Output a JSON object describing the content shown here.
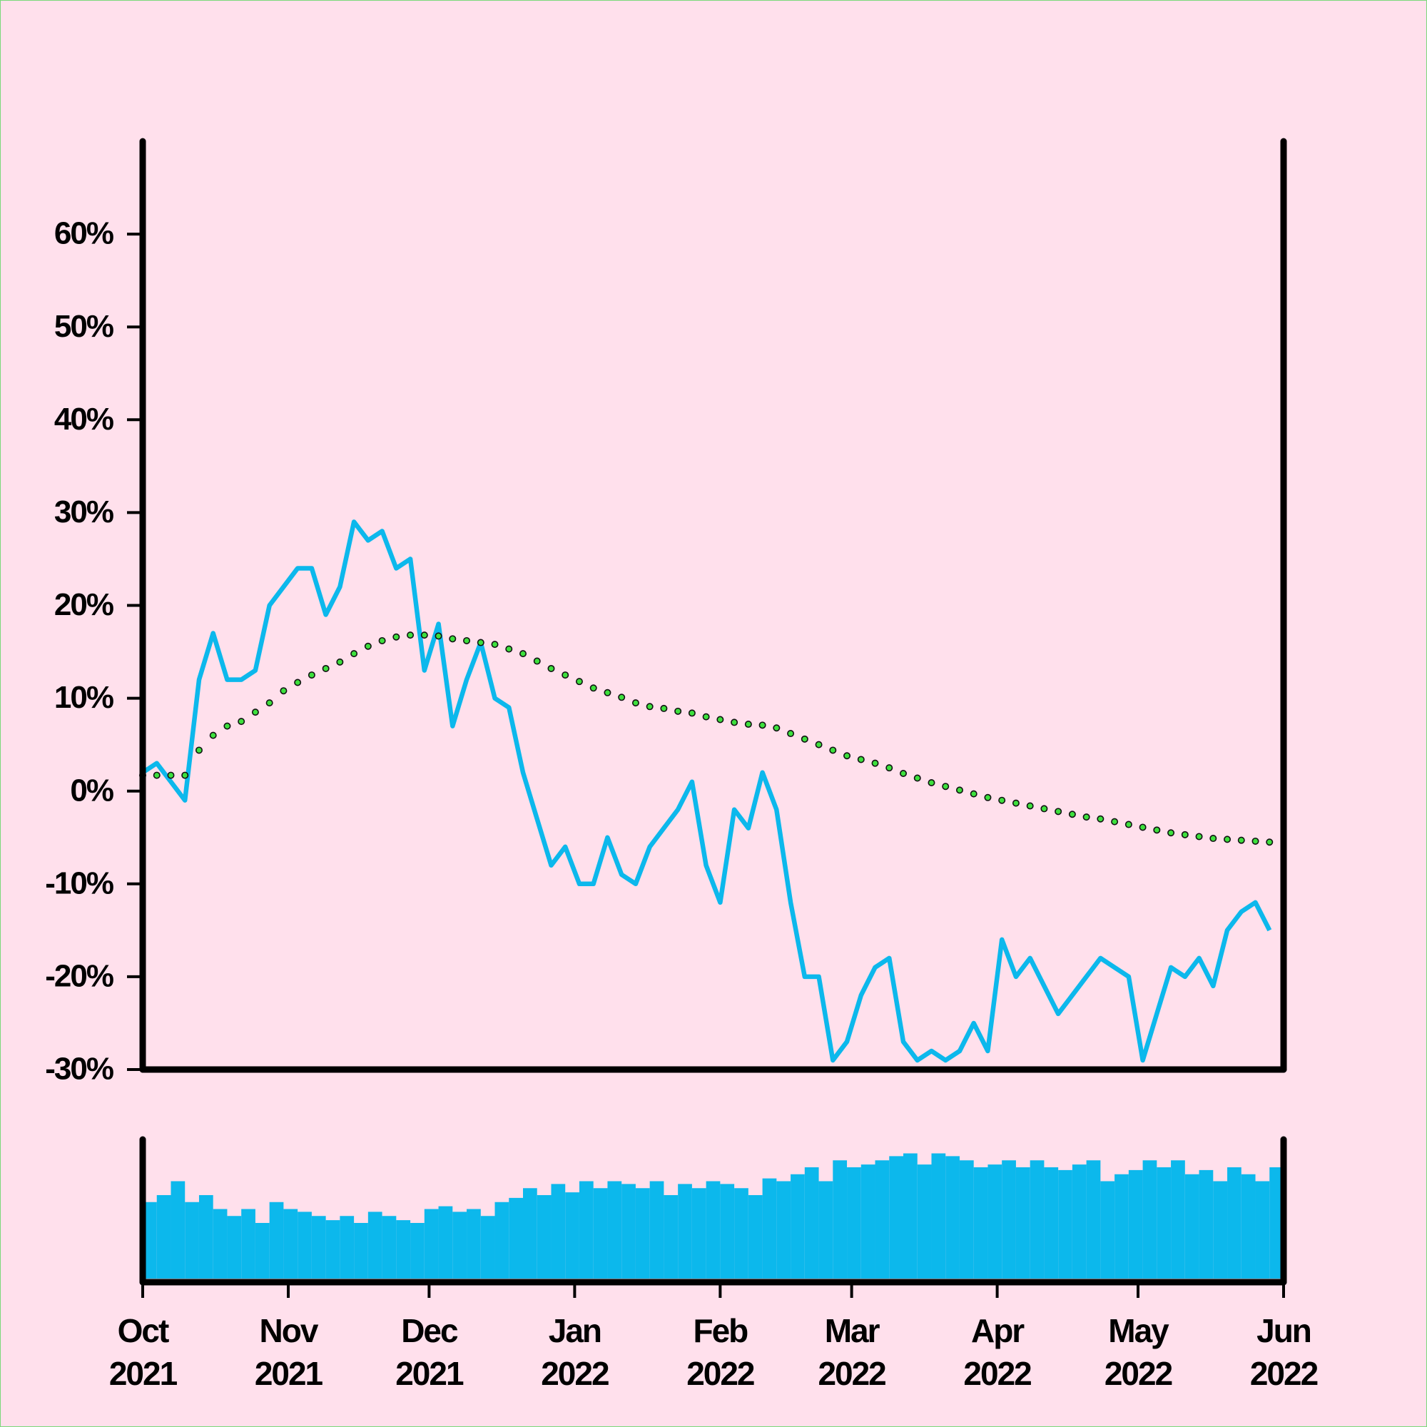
{
  "chart_data": [
    {
      "type": "line",
      "x": [
        "2021-10-01",
        "2021-10-04",
        "2021-10-07",
        "2021-10-10",
        "2021-10-13",
        "2021-10-16",
        "2021-10-19",
        "2021-10-22",
        "2021-10-25",
        "2021-10-28",
        "2021-10-31",
        "2021-11-03",
        "2021-11-06",
        "2021-11-09",
        "2021-11-12",
        "2021-11-15",
        "2021-11-18",
        "2021-11-21",
        "2021-11-24",
        "2021-11-27",
        "2021-11-30",
        "2021-12-03",
        "2021-12-06",
        "2021-12-09",
        "2021-12-12",
        "2021-12-15",
        "2021-12-18",
        "2021-12-21",
        "2021-12-24",
        "2021-12-27",
        "2021-12-30",
        "2022-01-02",
        "2022-01-05",
        "2022-01-08",
        "2022-01-11",
        "2022-01-14",
        "2022-01-17",
        "2022-01-20",
        "2022-01-23",
        "2022-01-26",
        "2022-01-29",
        "2022-02-01",
        "2022-02-04",
        "2022-02-07",
        "2022-02-10",
        "2022-02-13",
        "2022-02-16",
        "2022-02-19",
        "2022-02-22",
        "2022-02-25",
        "2022-02-28",
        "2022-03-03",
        "2022-03-06",
        "2022-03-09",
        "2022-03-12",
        "2022-03-15",
        "2022-03-18",
        "2022-03-21",
        "2022-03-24",
        "2022-03-27",
        "2022-03-30",
        "2022-04-02",
        "2022-04-05",
        "2022-04-08",
        "2022-04-11",
        "2022-04-14",
        "2022-04-17",
        "2022-04-20",
        "2022-04-23",
        "2022-04-26",
        "2022-04-29",
        "2022-05-02",
        "2022-05-05",
        "2022-05-08",
        "2022-05-11",
        "2022-05-14",
        "2022-05-17",
        "2022-05-20",
        "2022-05-23",
        "2022-05-26",
        "2022-05-29"
      ],
      "xlim": [
        "2021-10-01",
        "2022-06-01"
      ],
      "ylim": [
        -30,
        70
      ],
      "yticks": [
        {
          "value": -30,
          "label": "-30%"
        },
        {
          "value": -20,
          "label": "-20%"
        },
        {
          "value": -10,
          "label": "-10%"
        },
        {
          "value": 0,
          "label": "0%"
        },
        {
          "value": 10,
          "label": "10%"
        },
        {
          "value": 20,
          "label": "20%"
        },
        {
          "value": 30,
          "label": "30%"
        },
        {
          "value": 40,
          "label": "40%"
        },
        {
          "value": 50,
          "label": "50%"
        },
        {
          "value": 60,
          "label": "60%"
        }
      ],
      "series": [
        {
          "color": "#0cb8ec",
          "style": "line",
          "values": [
            2,
            3,
            1,
            -1,
            12,
            17,
            12,
            12,
            13,
            20,
            22,
            24,
            24,
            19,
            22,
            29,
            27,
            28,
            24,
            25,
            13,
            18,
            7,
            12,
            16,
            10,
            9,
            2,
            -3,
            -8,
            -6,
            -10,
            -10,
            -5,
            -9,
            -10,
            -6,
            -4,
            -2,
            1,
            -8,
            -12,
            -2,
            -4,
            2,
            -2,
            -12,
            -20,
            -20,
            -29,
            -27,
            -22,
            -19,
            -18,
            -27,
            -29,
            -28,
            -29,
            -28,
            -25,
            -28,
            -16,
            -20,
            -18,
            -21,
            -24,
            -22,
            -20,
            -18,
            -19,
            -20,
            -29,
            -24,
            -19,
            -20,
            -18,
            -21,
            -15,
            -13,
            -12,
            -15
          ]
        },
        {
          "color": "#3de03d",
          "style": "dots",
          "values": [
            1.7,
            1.7,
            1.7,
            1.7,
            4.4,
            6,
            7,
            7.5,
            8.5,
            9.5,
            10.8,
            11.7,
            12.5,
            13.2,
            13.9,
            14.8,
            15.6,
            16.2,
            16.6,
            16.8,
            16.8,
            16.7,
            16.4,
            16.2,
            16,
            15.8,
            15.3,
            14.8,
            14,
            13.2,
            12.5,
            11.8,
            11.1,
            10.6,
            10.1,
            9.5,
            9.1,
            8.9,
            8.6,
            8.4,
            8,
            7.7,
            7.4,
            7.2,
            7.1,
            6.8,
            6.2,
            5.6,
            5,
            4.4,
            3.8,
            3.4,
            3,
            2.5,
            1.9,
            1.4,
            0.9,
            0.5,
            0.1,
            -0.3,
            -0.7,
            -1,
            -1.3,
            -1.6,
            -1.9,
            -2.2,
            -2.5,
            -2.8,
            -3,
            -3.3,
            -3.6,
            -3.9,
            -4.2,
            -4.5,
            -4.7,
            -4.9,
            -5.1,
            -5.2,
            -5.3,
            -5.4,
            -5.5
          ]
        }
      ]
    },
    {
      "type": "bar",
      "x": [
        "2021-10-01",
        "2021-10-04",
        "2021-10-07",
        "2021-10-10",
        "2021-10-13",
        "2021-10-16",
        "2021-10-19",
        "2021-10-22",
        "2021-10-25",
        "2021-10-28",
        "2021-10-31",
        "2021-11-03",
        "2021-11-06",
        "2021-11-09",
        "2021-11-12",
        "2021-11-15",
        "2021-11-18",
        "2021-11-21",
        "2021-11-24",
        "2021-11-27",
        "2021-11-30",
        "2021-12-03",
        "2021-12-06",
        "2021-12-09",
        "2021-12-12",
        "2021-12-15",
        "2021-12-18",
        "2021-12-21",
        "2021-12-24",
        "2021-12-27",
        "2021-12-30",
        "2022-01-02",
        "2022-01-05",
        "2022-01-08",
        "2022-01-11",
        "2022-01-14",
        "2022-01-17",
        "2022-01-20",
        "2022-01-23",
        "2022-01-26",
        "2022-01-29",
        "2022-02-01",
        "2022-02-04",
        "2022-02-07",
        "2022-02-10",
        "2022-02-13",
        "2022-02-16",
        "2022-02-19",
        "2022-02-22",
        "2022-02-25",
        "2022-02-28",
        "2022-03-03",
        "2022-03-06",
        "2022-03-09",
        "2022-03-12",
        "2022-03-15",
        "2022-03-18",
        "2022-03-21",
        "2022-03-24",
        "2022-03-27",
        "2022-03-30",
        "2022-04-02",
        "2022-04-05",
        "2022-04-08",
        "2022-04-11",
        "2022-04-14",
        "2022-04-17",
        "2022-04-20",
        "2022-04-23",
        "2022-04-26",
        "2022-04-29",
        "2022-05-02",
        "2022-05-05",
        "2022-05-08",
        "2022-05-11",
        "2022-05-14",
        "2022-05-17",
        "2022-05-20",
        "2022-05-23",
        "2022-05-26",
        "2022-05-29"
      ],
      "values": [
        55,
        60,
        70,
        55,
        60,
        50,
        45,
        50,
        40,
        55,
        50,
        48,
        45,
        42,
        45,
        40,
        48,
        45,
        42,
        40,
        50,
        52,
        48,
        50,
        45,
        55,
        58,
        65,
        60,
        68,
        62,
        70,
        65,
        70,
        68,
        65,
        70,
        60,
        68,
        65,
        70,
        68,
        65,
        60,
        72,
        70,
        75,
        80,
        70,
        85,
        80,
        82,
        85,
        88,
        90,
        82,
        90,
        88,
        85,
        80,
        82,
        85,
        80,
        85,
        80,
        78,
        82,
        85,
        70,
        75,
        78,
        85,
        80,
        85,
        75,
        78,
        70,
        80,
        75,
        70,
        80
      ],
      "color": "#0cb8ec",
      "xlim": [
        "2021-10-01",
        "2022-06-01"
      ],
      "ylim": [
        0,
        100
      ],
      "xticks": [
        {
          "value": "2021-10-01",
          "label": "Oct\n2021"
        },
        {
          "value": "2021-11-01",
          "label": "Nov\n2021"
        },
        {
          "value": "2021-12-01",
          "label": "Dec\n2021"
        },
        {
          "value": "2022-01-01",
          "label": "Jan\n2022"
        },
        {
          "value": "2022-02-01",
          "label": "Feb\n2022"
        },
        {
          "value": "2022-03-01",
          "label": "Mar\n2022"
        },
        {
          "value": "2022-04-01",
          "label": "Apr\n2022"
        },
        {
          "value": "2022-05-01",
          "label": "May\n2022"
        },
        {
          "value": "2022-06-01",
          "label": "Jun\n2022"
        }
      ]
    }
  ]
}
